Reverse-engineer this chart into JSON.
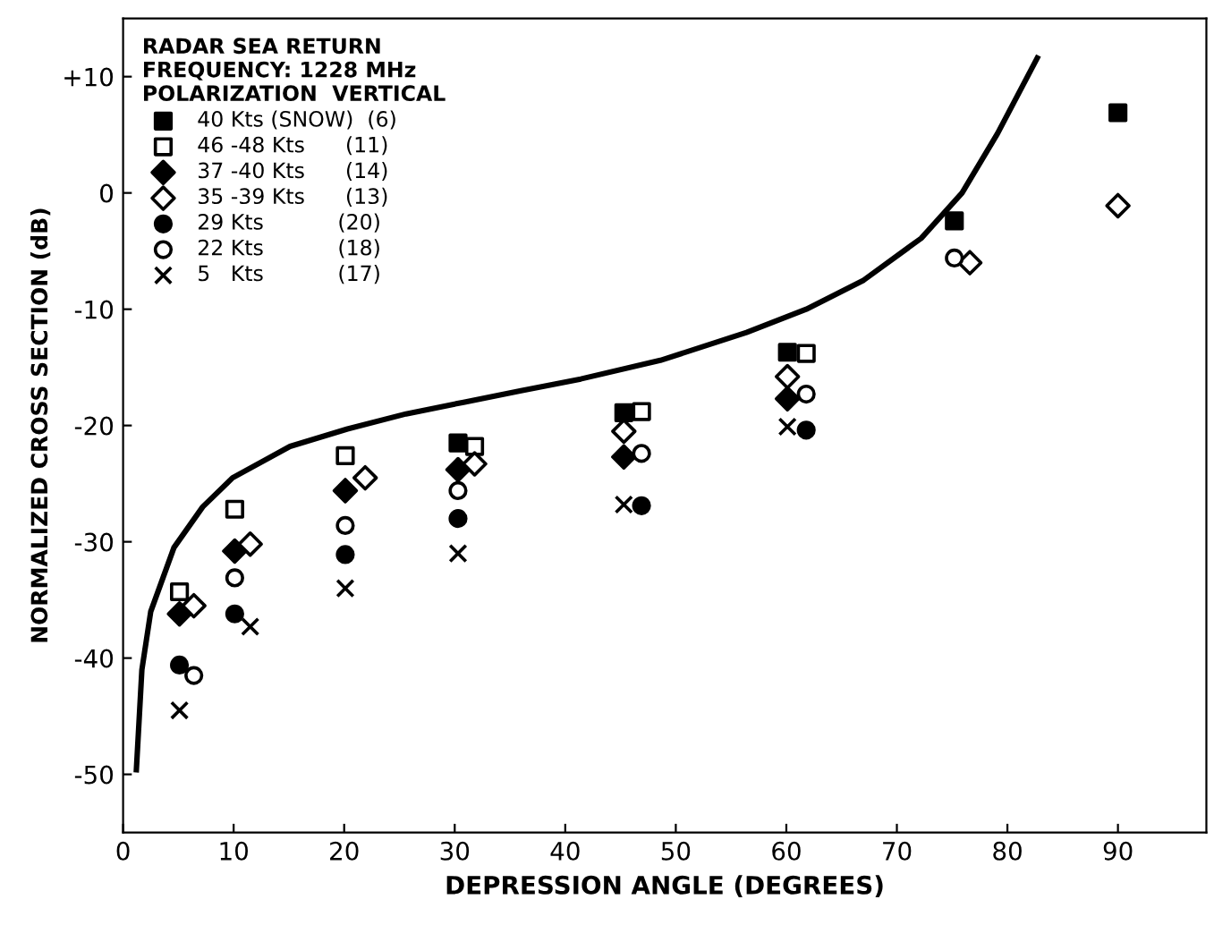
{
  "chart_data": {
    "type": "scatter",
    "xlabel": "DEPRESSION ANGLE (DEGREES)",
    "ylabel": "NORMALIZED CROSS SECTION (dB)",
    "legend_title": "RADAR SEA RETURN\nFREQUENCY: 1228 MHz\nPOLARIZATION  VERTICAL",
    "legend": "top left",
    "grid": false,
    "xlim": [
      0,
      98
    ],
    "ylim": [
      -55,
      15
    ],
    "xticks": [
      0,
      10,
      20,
      30,
      40,
      50,
      60,
      70,
      80,
      90
    ],
    "yticks": [
      -50,
      -40,
      -30,
      -20,
      -10,
      0,
      {
        "value": 10,
        "label": "+10"
      }
    ],
    "series": [
      {
        "name": "40 Kts (SNOW)  (6)",
        "color": "#000000",
        "marker": "square",
        "x": [
          30.3,
          45.3,
          60.1,
          75.2,
          90
        ],
        "values": [
          -21.5,
          -18.9,
          -13.7,
          -2.4,
          6.9
        ]
      },
      {
        "name": "46 -48 Kts      (11)",
        "color": "#000000",
        "marker": "square",
        "x": [
          5.1,
          10.1,
          20.1,
          31.8,
          46.9,
          61.8
        ],
        "values": [
          -34.3,
          -27.2,
          -22.6,
          -21.8,
          -18.8,
          -13.8
        ]
      },
      {
        "name": "37 -40 Kts      (14)",
        "color": "#000000",
        "marker": "diamond",
        "x": [
          5.1,
          10.1,
          20.1,
          30.3,
          45.3,
          60.1
        ],
        "values": [
          -36.2,
          -30.8,
          -25.6,
          -23.8,
          -22.7,
          -17.7
        ]
      },
      {
        "name": "35 -39 Kts      (13)",
        "color": "#000000",
        "marker": "diamond",
        "x": [
          6.4,
          11.5,
          21.9,
          31.8,
          45.3,
          60.1,
          76.6,
          90
        ],
        "values": [
          -35.5,
          -30.2,
          -24.5,
          -23.3,
          -20.5,
          -15.8,
          -6.0,
          -1.1
        ]
      },
      {
        "name": "29 Kts           (20)",
        "color": "#000000",
        "marker": "circle",
        "x": [
          5.1,
          10.1,
          20.1,
          30.3,
          46.9,
          61.8
        ],
        "values": [
          -40.6,
          -36.2,
          -31.1,
          -28.0,
          -26.9,
          -20.4
        ]
      },
      {
        "name": "22 Kts           (18)",
        "color": "#000000",
        "marker": "circle",
        "x": [
          6.4,
          10.1,
          20.1,
          30.3,
          46.9,
          61.8,
          75.2
        ],
        "values": [
          -41.5,
          -33.1,
          -28.6,
          -25.6,
          -22.4,
          -17.3,
          -5.6
        ]
      },
      {
        "name": "5   Kts           (17)",
        "color": "#000000",
        "marker": "cross",
        "x": [
          5.1,
          11.5,
          20.1,
          30.3,
          45.3,
          60.1
        ],
        "values": [
          -44.5,
          -37.3,
          -34.0,
          -31.0,
          -26.8,
          -20.1
        ]
      },
      {
        "type": "line",
        "color": "#000000",
        "marker": "none",
        "x": [
          1.2,
          1.7,
          2.5,
          4.6,
          7.2,
          9.9,
          15.1,
          20.3,
          25.6,
          30.8,
          36,
          41.4,
          48.6,
          56.4,
          61.8,
          67,
          72.2,
          75.9,
          79.1,
          82.7
        ],
        "values": [
          -49.6,
          -41,
          -36,
          -30.5,
          -27,
          -24.5,
          -21.8,
          -20.3,
          -19,
          -18,
          -17,
          -16,
          -14.4,
          -12,
          -10,
          -7.5,
          -3.9,
          0,
          5.1,
          11.6
        ]
      }
    ]
  }
}
